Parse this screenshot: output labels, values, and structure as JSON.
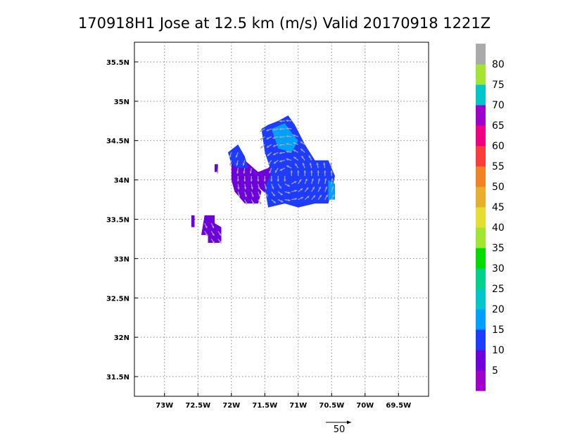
{
  "chart_data": {
    "type": "heatmap",
    "title": "170918H1 Jose at 12.5 km (m/s) Valid 20170918  1221Z",
    "xlim": [
      -73.45,
      -69.05
    ],
    "ylim": [
      31.25,
      35.75
    ],
    "x_ticks": [
      {
        "value": -73.0,
        "label": "73W"
      },
      {
        "value": -72.5,
        "label": "72.5W"
      },
      {
        "value": -72.0,
        "label": "72W"
      },
      {
        "value": -71.5,
        "label": "71.5W"
      },
      {
        "value": -71.0,
        "label": "71W"
      },
      {
        "value": -70.5,
        "label": "70.5W"
      },
      {
        "value": -70.0,
        "label": "70W"
      },
      {
        "value": -69.5,
        "label": "69.5W"
      }
    ],
    "y_ticks": [
      {
        "value": 31.5,
        "label": "31.5N"
      },
      {
        "value": 32.0,
        "label": "32N"
      },
      {
        "value": 32.5,
        "label": "32.5N"
      },
      {
        "value": 33.0,
        "label": "33N"
      },
      {
        "value": 33.5,
        "label": "33.5N"
      },
      {
        "value": 34.0,
        "label": "34N"
      },
      {
        "value": 34.5,
        "label": "34.5N"
      },
      {
        "value": 35.0,
        "label": "35N"
      },
      {
        "value": 35.5,
        "label": "35.5N"
      }
    ],
    "grid": true,
    "colorbar": {
      "labels": [
        "5",
        "10",
        "15",
        "20",
        "25",
        "30",
        "35",
        "40",
        "45",
        "50",
        "55",
        "60",
        "65",
        "70",
        "75",
        "80"
      ],
      "colors": [
        "#a000c8",
        "#6e00dc",
        "#1e3cff",
        "#00a0ff",
        "#00c8c8",
        "#00d28c",
        "#00dc00",
        "#a0e632",
        "#e6dc32",
        "#e6af2d",
        "#f08228",
        "#fa3c3c",
        "#f00082",
        "#a000c8",
        "#00c8c8",
        "#a0e632",
        "#aaaaaa"
      ]
    },
    "reference_vector": {
      "label": "50",
      "speed": 50
    },
    "regions": [
      {
        "name": "inner-core",
        "value": 8,
        "polygon": [
          [
            -71.85,
            34.05
          ],
          [
            -71.65,
            33.95
          ],
          [
            -71.45,
            33.8
          ],
          [
            -71.3,
            33.7
          ],
          [
            -71.1,
            33.75
          ],
          [
            -70.95,
            33.9
          ],
          [
            -70.8,
            34.05
          ],
          [
            -70.65,
            34.2
          ],
          [
            -70.9,
            34.3
          ],
          [
            -71.1,
            34.35
          ],
          [
            -71.3,
            34.3
          ],
          [
            -71.45,
            34.15
          ],
          [
            -71.6,
            34.1
          ],
          [
            -71.8,
            34.25
          ]
        ]
      },
      {
        "name": "west-arm",
        "value": 7,
        "polygon": [
          [
            -72.0,
            34.2
          ],
          [
            -72.0,
            34.0
          ],
          [
            -71.95,
            33.85
          ],
          [
            -71.8,
            33.7
          ],
          [
            -71.6,
            33.7
          ],
          [
            -71.55,
            33.85
          ],
          [
            -71.7,
            34.05
          ],
          [
            -71.85,
            34.2
          ]
        ]
      },
      {
        "name": "north-band",
        "value": 12,
        "polygon": [
          [
            -71.55,
            34.65
          ],
          [
            -71.5,
            34.35
          ],
          [
            -71.4,
            34.1
          ],
          [
            -71.5,
            33.9
          ],
          [
            -71.45,
            33.65
          ],
          [
            -71.2,
            33.7
          ],
          [
            -71.0,
            33.65
          ],
          [
            -70.75,
            33.7
          ],
          [
            -70.55,
            33.7
          ],
          [
            -70.5,
            33.85
          ],
          [
            -70.45,
            34.05
          ],
          [
            -70.55,
            34.25
          ],
          [
            -70.75,
            34.25
          ],
          [
            -70.9,
            34.45
          ],
          [
            -71.05,
            34.7
          ],
          [
            -71.15,
            34.82
          ],
          [
            -71.3,
            34.75
          ],
          [
            -71.45,
            34.7
          ]
        ]
      },
      {
        "name": "northwest-rim",
        "value": 11,
        "polygon": [
          [
            -72.05,
            34.35
          ],
          [
            -71.9,
            34.45
          ],
          [
            -71.8,
            34.3
          ],
          [
            -71.75,
            34.15
          ],
          [
            -71.9,
            34.15
          ],
          [
            -72.0,
            34.2
          ]
        ]
      },
      {
        "name": "north-peak",
        "value": 17,
        "polygon": [
          [
            -71.4,
            34.65
          ],
          [
            -71.2,
            34.72
          ],
          [
            -71.1,
            34.6
          ],
          [
            -71.0,
            34.5
          ],
          [
            -71.1,
            34.35
          ],
          [
            -71.3,
            34.4
          ]
        ]
      },
      {
        "name": "east-edge",
        "value": 17,
        "polygon": [
          [
            -70.55,
            34.0
          ],
          [
            -70.45,
            33.95
          ],
          [
            -70.45,
            33.75
          ],
          [
            -70.55,
            33.75
          ]
        ]
      },
      {
        "name": "south-patch",
        "value": 7,
        "polygon": [
          [
            -72.4,
            33.55
          ],
          [
            -72.25,
            33.55
          ],
          [
            -72.25,
            33.45
          ],
          [
            -72.15,
            33.4
          ],
          [
            -72.15,
            33.2
          ],
          [
            -72.35,
            33.2
          ],
          [
            -72.35,
            33.3
          ],
          [
            -72.45,
            33.3
          ]
        ]
      },
      {
        "name": "isolated-cell-west",
        "value": 7,
        "polygon": [
          [
            -72.6,
            33.55
          ],
          [
            -72.55,
            33.55
          ],
          [
            -72.55,
            33.4
          ],
          [
            -72.6,
            33.4
          ]
        ]
      },
      {
        "name": "isolated-cell-north",
        "value": 7,
        "polygon": [
          [
            -72.25,
            34.2
          ],
          [
            -72.2,
            34.2
          ],
          [
            -72.2,
            34.1
          ],
          [
            -72.25,
            34.1
          ]
        ]
      }
    ]
  }
}
